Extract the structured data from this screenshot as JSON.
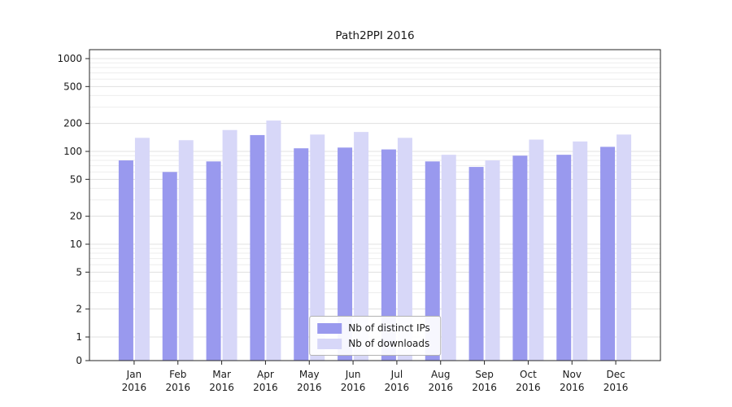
{
  "chart_data": {
    "type": "bar",
    "title": "Path2PPI 2016",
    "scale": "log",
    "grid": true,
    "legend_position": "inside-bottom-center",
    "categories": [
      "Jan",
      "Feb",
      "Mar",
      "Apr",
      "May",
      "Jun",
      "Jul",
      "Aug",
      "Sep",
      "Oct",
      "Nov",
      "Dec"
    ],
    "category_year": "2016",
    "y_ticks": [
      0,
      1,
      2,
      5,
      10,
      20,
      50,
      100,
      200,
      500,
      1000
    ],
    "ylim": [
      0,
      1250
    ],
    "series": [
      {
        "name": "Nb of distinct IPs",
        "color": "#9999ee",
        "values": [
          80,
          60,
          78,
          150,
          108,
          110,
          105,
          78,
          68,
          90,
          92,
          112
        ]
      },
      {
        "name": "Nb of downloads",
        "color": "#d7d7f8",
        "values": [
          140,
          132,
          170,
          215,
          152,
          162,
          140,
          92,
          80,
          134,
          128,
          152
        ]
      }
    ]
  },
  "colors": {
    "frame": "#262626",
    "gridline_minor": "#ededed",
    "gridline_major": "#e0e0e0",
    "tick_text": "#1a1a1a"
  }
}
